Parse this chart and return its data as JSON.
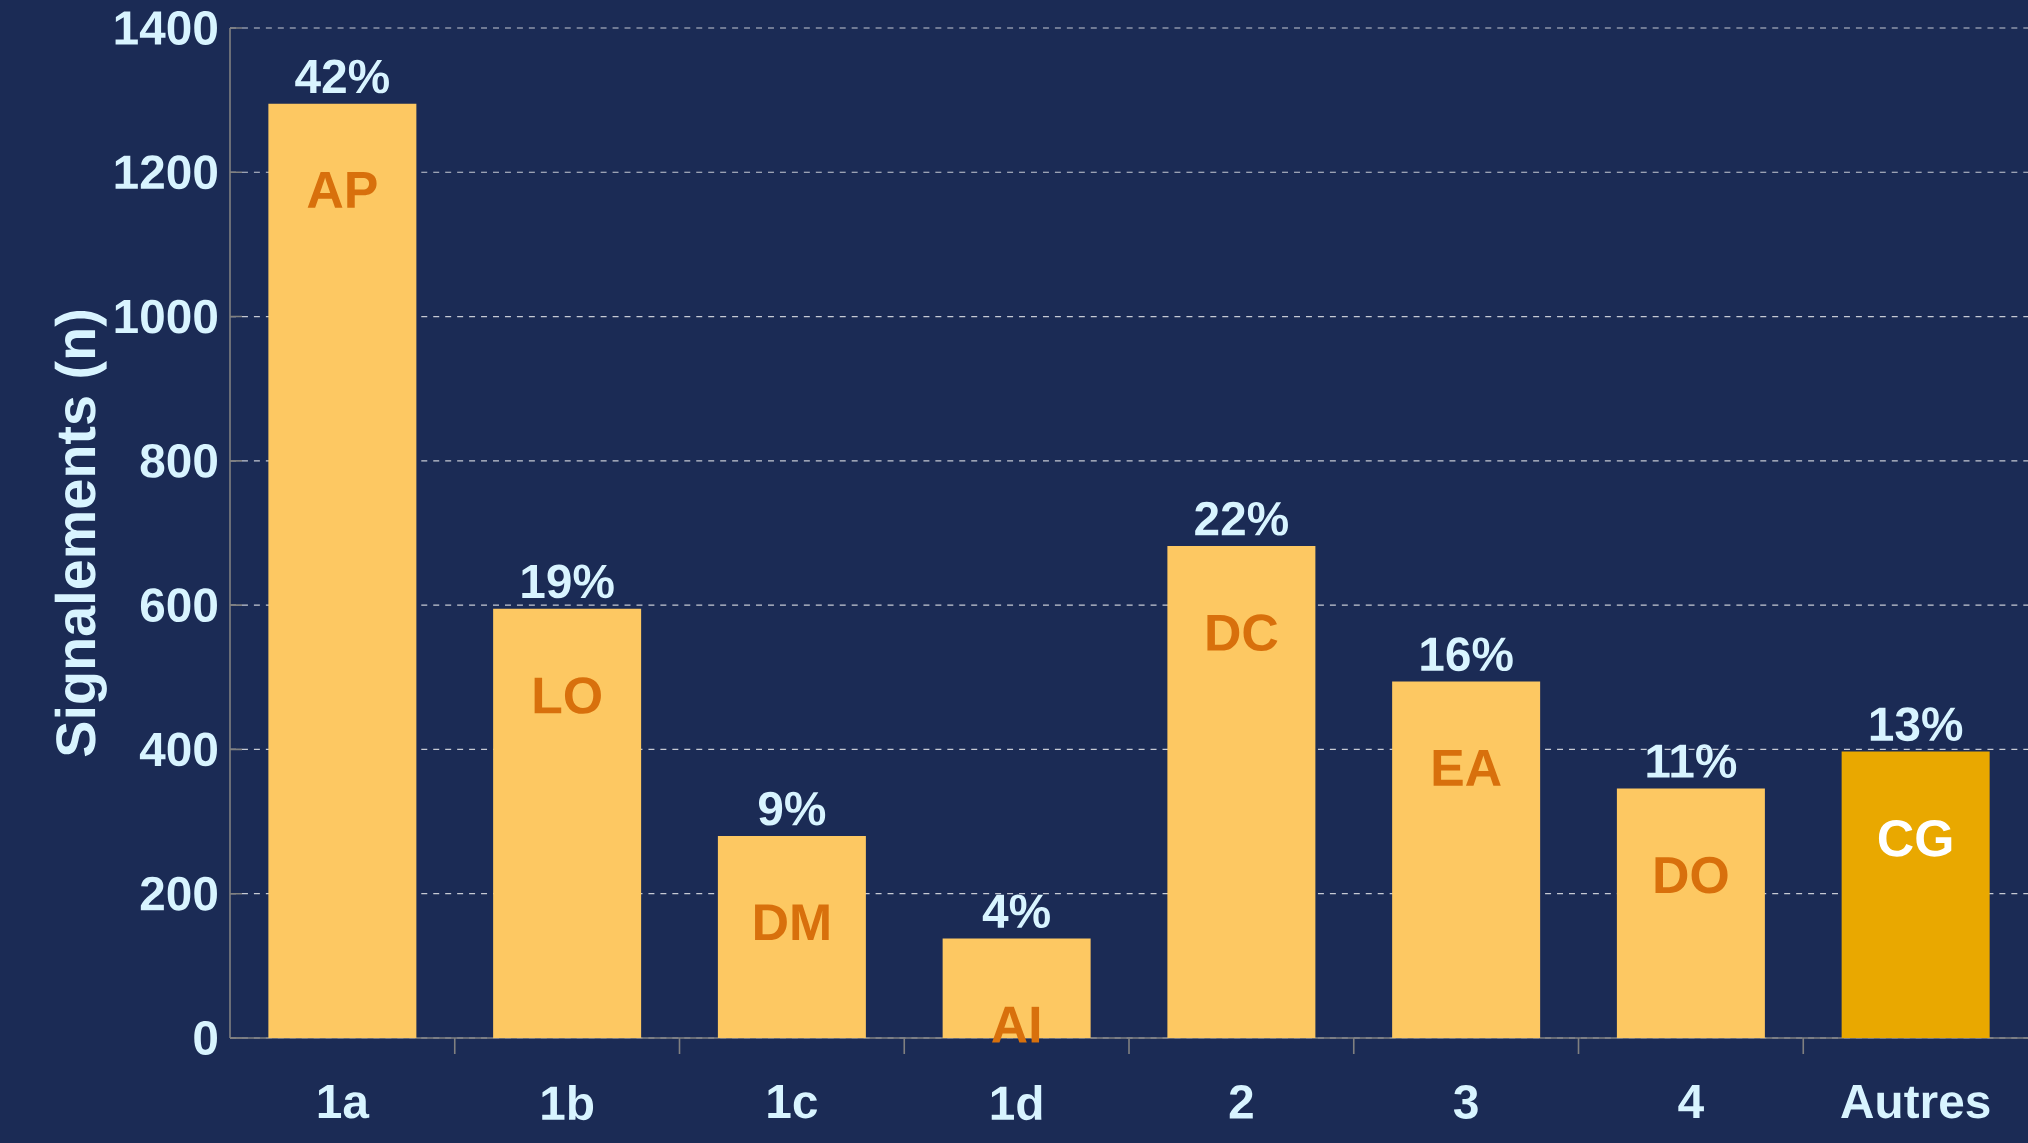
{
  "chart_data": {
    "type": "bar",
    "ylabel": "Signalements (n)",
    "categories": [
      "1a",
      "1b",
      "1c",
      "1d",
      "2",
      "3",
      "4",
      "Autres"
    ],
    "values": [
      1295,
      595,
      280,
      138,
      682,
      494,
      346,
      397
    ],
    "colors": [
      "#fdc862",
      "#fdc862",
      "#fdc862",
      "#fdc862",
      "#fdc862",
      "#fdc862",
      "#fdc862",
      "#e9a800"
    ],
    "annotations": [
      {
        "text": "42%",
        "x": "1a",
        "y": 1295
      },
      {
        "text": "19%",
        "x": "1b",
        "y": 595
      },
      {
        "text": "9%",
        "x": "1c",
        "y": 280
      },
      {
        "text": "4%",
        "x": "1d",
        "y": 138
      },
      {
        "text": "22%",
        "x": "2",
        "y": 682
      },
      {
        "text": "16%",
        "x": "3",
        "y": 494
      },
      {
        "text": "11%",
        "x": "4",
        "y": 346
      },
      {
        "text": "13%",
        "x": "Autres",
        "y": 397
      },
      "AP",
      "LO",
      "DM",
      "AI",
      "DC",
      "EA",
      "DO",
      "CG"
    ],
    "ylim": [
      0,
      1400
    ],
    "yticks": [
      0,
      200,
      400,
      600,
      800,
      1000,
      1200,
      1400
    ],
    "grid": "y"
  }
}
